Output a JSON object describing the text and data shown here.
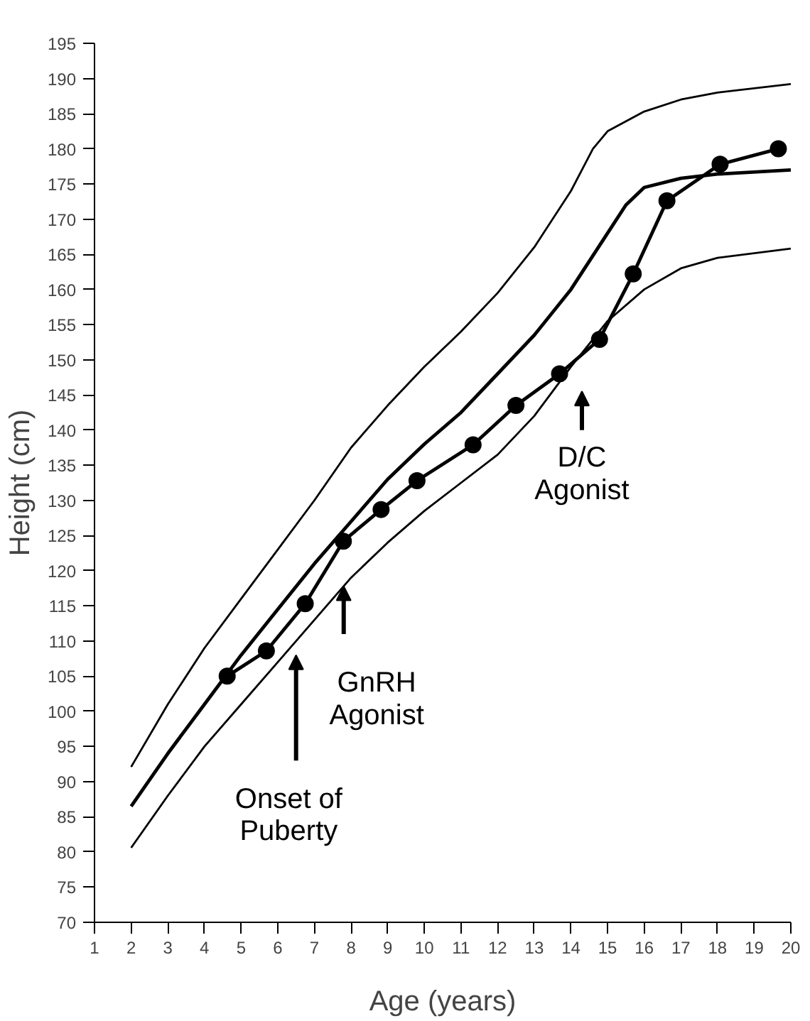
{
  "chart_data": {
    "type": "line",
    "xlabel": "Age (years)",
    "ylabel": "Height (cm)",
    "xlim": [
      1,
      20
    ],
    "ylim": [
      70,
      195
    ],
    "xticks": [
      1,
      2,
      3,
      4,
      5,
      6,
      7,
      8,
      9,
      10,
      11,
      12,
      13,
      14,
      15,
      16,
      17,
      18,
      19,
      20
    ],
    "yticks": [
      70,
      75,
      80,
      85,
      90,
      95,
      100,
      105,
      110,
      115,
      120,
      125,
      130,
      135,
      140,
      145,
      150,
      155,
      160,
      165,
      170,
      175,
      180,
      185,
      190,
      195
    ],
    "grid": false,
    "series": [
      {
        "color": "#000000",
        "marker": "none",
        "x": [
          2,
          3,
          4,
          5,
          6,
          7,
          8,
          9,
          10,
          11,
          12,
          13,
          14,
          14.6,
          15,
          16,
          17,
          18,
          20
        ],
        "values": [
          92.1,
          101,
          109,
          116,
          123,
          130,
          137.5,
          143.5,
          149,
          154,
          159.5,
          166,
          174,
          180,
          182.5,
          185.3,
          187,
          188,
          189.2
        ]
      },
      {
        "color": "#000000",
        "marker": "none",
        "x": [
          2,
          3,
          4,
          5,
          6,
          7,
          8,
          9,
          10,
          11,
          12,
          13,
          14,
          15,
          15.5,
          16,
          17,
          18,
          20
        ],
        "values": [
          86.5,
          94,
          101,
          108,
          114.5,
          121,
          127,
          133,
          138,
          142.5,
          148,
          153.5,
          160,
          168,
          172,
          174.5,
          175.8,
          176.4,
          177
        ]
      },
      {
        "color": "#000000",
        "marker": "none",
        "x": [
          2,
          3,
          4,
          5,
          6,
          7,
          8,
          9,
          10,
          11,
          12,
          13,
          14,
          15,
          16,
          17,
          18,
          20
        ],
        "values": [
          80.6,
          88,
          95,
          101,
          107,
          113,
          119,
          124,
          128.5,
          132.5,
          136.5,
          142,
          149,
          155.5,
          160,
          163,
          164.5,
          165.8
        ]
      },
      {
        "color": "#000000",
        "marker": "circle",
        "x": [
          4.62,
          5.69,
          6.75,
          7.79,
          8.82,
          9.8,
          11.33,
          12.5,
          13.69,
          14.78,
          15.7,
          16.62,
          18.07,
          19.66
        ],
        "values": [
          105,
          108.6,
          115.3,
          124.2,
          128.7,
          132.8,
          137.9,
          143.5,
          148,
          152.9,
          162.2,
          172.6,
          177.8,
          180
        ]
      }
    ],
    "annotations": [
      "Onset of\nPuberty",
      {
        "text": "GnRH\nAgonist",
        "x": 7.8,
        "y": 117.8
      },
      "D/C\nAgonist"
    ]
  }
}
